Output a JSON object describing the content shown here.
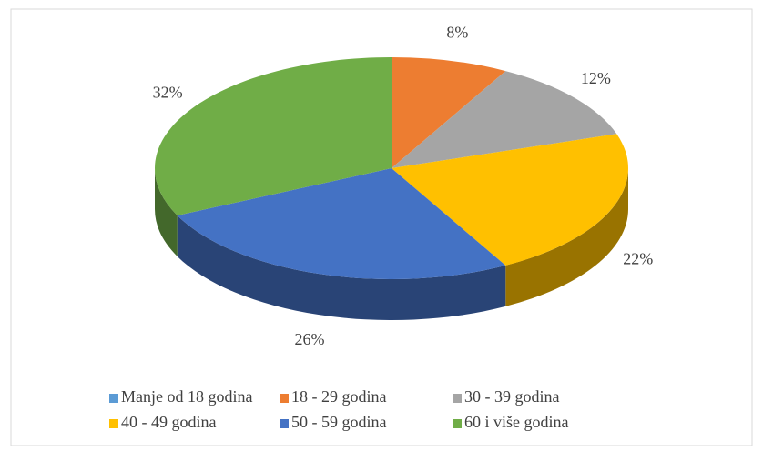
{
  "chart_data": {
    "type": "pie",
    "categories": [
      "Manje od 18 godina",
      "18 - 29 godina",
      "30 - 39 godina",
      "40 - 49 godina",
      "50 - 59 godina",
      "60 i više godina"
    ],
    "values": [
      0,
      8,
      12,
      22,
      26,
      32
    ],
    "value_labels": [
      null,
      "8%",
      "12%",
      "22%",
      "26%",
      "32%"
    ],
    "colors": [
      "#5b9bd5",
      "#ed7d31",
      "#a5a5a5",
      "#ffc000",
      "#4472c4",
      "#70ad47"
    ],
    "legend": "bottom"
  }
}
